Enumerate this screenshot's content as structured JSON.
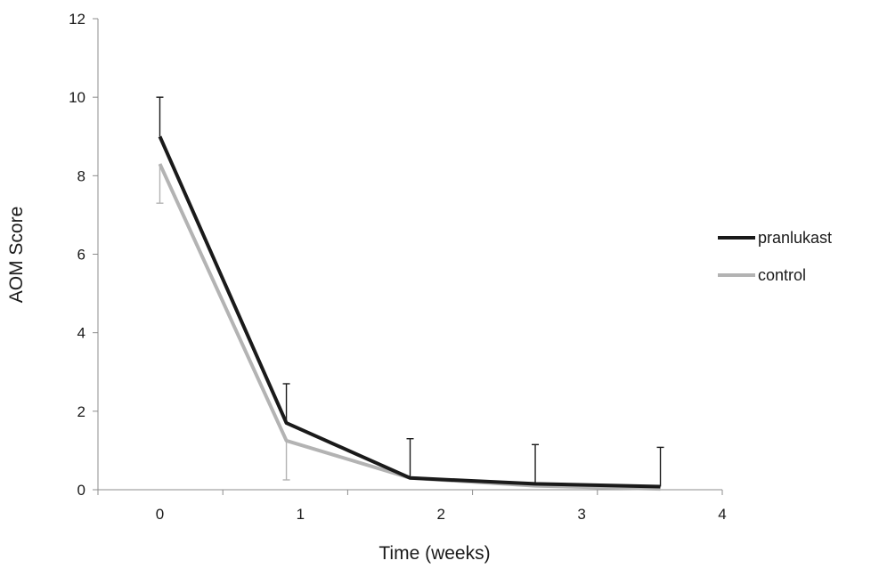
{
  "chart_data": {
    "type": "line",
    "title": "",
    "xlabel": "Time (weeks)",
    "ylabel": "AOM Score",
    "xlim": [
      -0.44,
      4
    ],
    "ylim": [
      0,
      12
    ],
    "x_ticks": [
      "0",
      "1",
      "2",
      "3",
      "4"
    ],
    "y_ticks": [
      "0",
      "2",
      "4",
      "6",
      "8",
      "10",
      "12"
    ],
    "grid": false,
    "legend_position": "right",
    "series": [
      {
        "name": "pranlukast",
        "color": "#1a1a1a",
        "x": [
          0,
          0.9,
          1.78,
          2.67,
          3.56
        ],
        "y": [
          9.0,
          1.7,
          0.3,
          0.15,
          0.08
        ],
        "error_upper": [
          1.0,
          1.0,
          1.0,
          1.0,
          1.0
        ]
      },
      {
        "name": "control",
        "color": "#b3b3b3",
        "x": [
          0,
          0.9,
          1.78,
          2.67,
          3.56
        ],
        "y": [
          8.3,
          1.25,
          0.3,
          0.1,
          0.02
        ],
        "error_lower": [
          1.0,
          1.0,
          0,
          0,
          0
        ]
      }
    ]
  }
}
